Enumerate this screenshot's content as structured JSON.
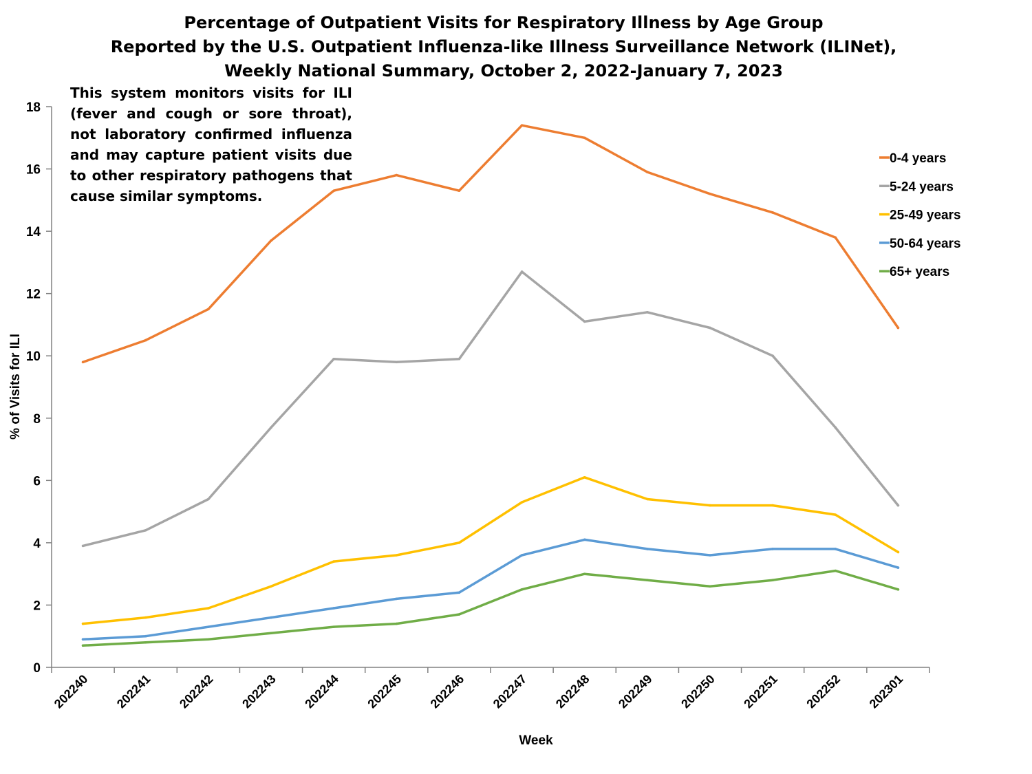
{
  "title": {
    "line1": "Percentage of Outpatient Visits for Respiratory Illness by Age Group",
    "line2": "Reported by the U.S. Outpatient Influenza-like Illness Surveillance Network (ILINet),",
    "line3": "Weekly National Summary, October 2, 2022-January 7, 2023"
  },
  "note": "This system monitors visits for ILI (fever and cough or sore throat), not laboratory confirmed influenza and may capture patient visits due to other respiratory pathogens that cause similar symptoms.",
  "chart_data": {
    "type": "line",
    "xlabel": "Week",
    "ylabel": "% of Visits for ILI",
    "ylim": [
      0,
      18
    ],
    "yticks": [
      0,
      2,
      4,
      6,
      8,
      10,
      12,
      14,
      16,
      18
    ],
    "categories": [
      "202240",
      "202241",
      "202242",
      "202243",
      "202244",
      "202245",
      "202246",
      "202247",
      "202248",
      "202249",
      "202250",
      "202251",
      "202252",
      "202301"
    ],
    "legend_position": "right",
    "grid": false,
    "series": [
      {
        "name": "0-4 years",
        "color": "#ED7D31",
        "values": [
          9.8,
          10.5,
          11.5,
          13.7,
          15.3,
          15.8,
          15.3,
          17.4,
          17.0,
          15.9,
          15.2,
          14.6,
          13.8,
          10.9
        ]
      },
      {
        "name": "5-24 years",
        "color": "#A5A5A5",
        "values": [
          3.9,
          4.4,
          5.4,
          7.7,
          9.9,
          9.8,
          9.9,
          12.7,
          11.1,
          11.4,
          10.9,
          10.0,
          7.7,
          5.2
        ]
      },
      {
        "name": "25-49 years",
        "color": "#FFC000",
        "values": [
          1.4,
          1.6,
          1.9,
          2.6,
          3.4,
          3.6,
          4.0,
          5.3,
          6.1,
          5.4,
          5.2,
          5.2,
          4.9,
          3.7
        ]
      },
      {
        "name": "50-64 years",
        "color": "#5B9BD5",
        "values": [
          0.9,
          1.0,
          1.3,
          1.6,
          1.9,
          2.2,
          2.4,
          3.6,
          4.1,
          3.8,
          3.6,
          3.8,
          3.8,
          3.2
        ]
      },
      {
        "name": "65+ years",
        "color": "#70AD47",
        "values": [
          0.7,
          0.8,
          0.9,
          1.1,
          1.3,
          1.4,
          1.7,
          2.5,
          3.0,
          2.8,
          2.6,
          2.8,
          3.1,
          2.5
        ]
      }
    ]
  }
}
